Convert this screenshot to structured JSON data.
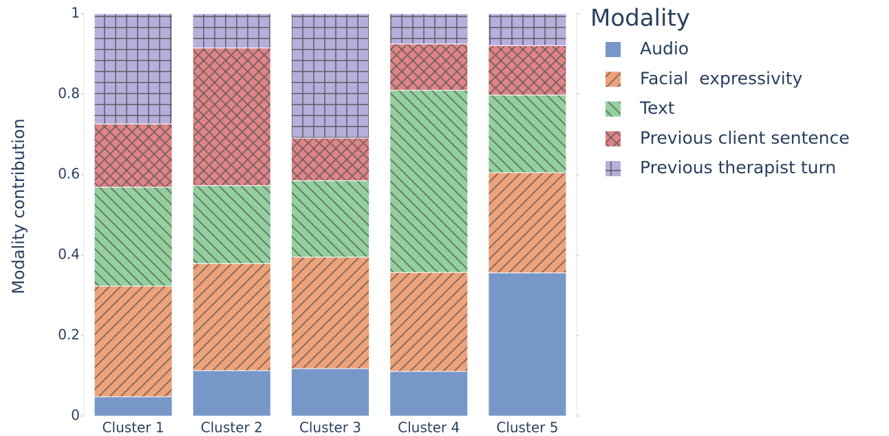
{
  "chart_data": {
    "type": "stacked_bar",
    "ylabel": "Modality contribution",
    "legend_title": "Modality",
    "legend": "right",
    "categories": [
      "Cluster 1",
      "Cluster 2",
      "Cluster 3",
      "Cluster 4",
      "Cluster 5"
    ],
    "series": [
      {
        "name": "Audio",
        "color": "#7897c9",
        "values": [
          0.048,
          0.113,
          0.118,
          0.111,
          0.356
        ]
      },
      {
        "name": "Facial  expressivity",
        "color": "#eea27a",
        "pattern": "/",
        "values": [
          0.275,
          0.266,
          0.277,
          0.246,
          0.249
        ]
      },
      {
        "name": "Text",
        "color": "#93d09e",
        "pattern": "\\",
        "values": [
          0.246,
          0.194,
          0.19,
          0.453,
          0.193
        ]
      },
      {
        "name": "Previous client sentence",
        "color": "#e08487",
        "pattern": "x",
        "values": [
          0.157,
          0.342,
          0.106,
          0.115,
          0.123
        ]
      },
      {
        "name": "Previous therapist turn",
        "color": "#b7aedc",
        "pattern": "+",
        "values": [
          0.274,
          0.085,
          0.309,
          0.075,
          0.079
        ]
      }
    ],
    "ylim": [
      0,
      1
    ],
    "yticks": [
      0,
      0.2,
      0.4,
      0.6,
      0.8,
      1
    ],
    "grid": false
  }
}
